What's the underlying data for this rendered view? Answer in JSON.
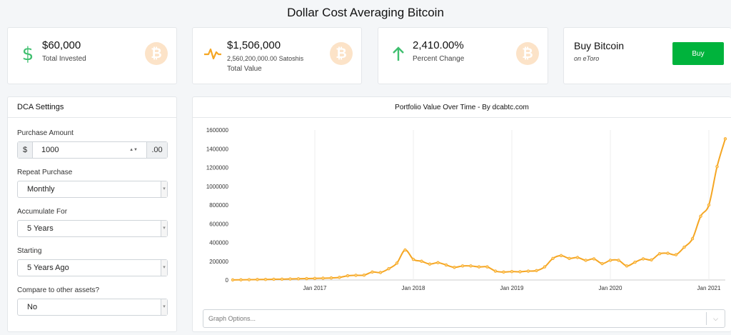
{
  "header": {
    "title": "Dollar Cost Averaging Bitcoin"
  },
  "stats": {
    "invested": {
      "value": "$60,000",
      "label": "Total Invested",
      "icon": "dollar-icon"
    },
    "total": {
      "value": "$1,506,000",
      "sats": "2,560,200,000.00 Satoshis",
      "label": "Total Value",
      "icon": "pulse-icon"
    },
    "change": {
      "value": "2,410.00%",
      "label": "Percent Change",
      "icon": "arrow-up-icon"
    },
    "buy": {
      "title": "Buy Bitcoin",
      "subtitle": "on eToro",
      "button": "Buy"
    },
    "coin_glyph": "₿"
  },
  "settings": {
    "title": "DCA Settings",
    "amount_label": "Purchase Amount",
    "currency_symbol": "$",
    "amount_value": "1000",
    "cents": ".00",
    "repeat_label": "Repeat Purchase",
    "repeat_value": "Monthly",
    "accumulate_label": "Accumulate For",
    "accumulate_value": "5 Years",
    "starting_label": "Starting",
    "starting_value": "5 Years Ago",
    "compare_label": "Compare to other assets?",
    "compare_value": "No"
  },
  "chart": {
    "title": "Portfolio Value Over Time - By dcabtc.com",
    "graph_options_placeholder": "Graph Options..."
  },
  "colors": {
    "accent": "#f5a623",
    "green": "#00b33c",
    "coin": "#fce3c8"
  },
  "chart_data": {
    "type": "line",
    "title": "Portfolio Value Over Time - By dcabtc.com",
    "xlabel": "",
    "ylabel": "",
    "ylim": [
      0,
      1600000
    ],
    "yticks": [
      0,
      200000,
      400000,
      600000,
      800000,
      1000000,
      1200000,
      1400000,
      1600000
    ],
    "xticks": [
      "Jan 2017",
      "Jan 2018",
      "Jan 2019",
      "Jan 2020",
      "Jan 2021"
    ],
    "grid": "vertical",
    "x": [
      "Mar 2016",
      "Apr 2016",
      "May 2016",
      "Jun 2016",
      "Jul 2016",
      "Aug 2016",
      "Sep 2016",
      "Oct 2016",
      "Nov 2016",
      "Dec 2016",
      "Jan 2017",
      "Feb 2017",
      "Mar 2017",
      "Apr 2017",
      "May 2017",
      "Jun 2017",
      "Jul 2017",
      "Aug 2017",
      "Sep 2017",
      "Oct 2017",
      "Nov 2017",
      "Dec 2017",
      "Jan 2018",
      "Feb 2018",
      "Mar 2018",
      "Apr 2018",
      "May 2018",
      "Jun 2018",
      "Jul 2018",
      "Aug 2018",
      "Sep 2018",
      "Oct 2018",
      "Nov 2018",
      "Dec 2018",
      "Jan 2019",
      "Feb 2019",
      "Mar 2019",
      "Apr 2019",
      "May 2019",
      "Jun 2019",
      "Jul 2019",
      "Aug 2019",
      "Sep 2019",
      "Oct 2019",
      "Nov 2019",
      "Dec 2019",
      "Jan 2020",
      "Feb 2020",
      "Mar 2020",
      "Apr 2020",
      "May 2020",
      "Jun 2020",
      "Jul 2020",
      "Aug 2020",
      "Sep 2020",
      "Oct 2020",
      "Nov 2020",
      "Dec 2020",
      "Jan 2021",
      "Feb 2021",
      "Mar 2021"
    ],
    "series": [
      {
        "values": [
          1000,
          2000,
          3500,
          5000,
          6000,
          8000,
          9000,
          11000,
          13000,
          15000,
          17000,
          19000,
          22000,
          28000,
          45000,
          50000,
          52000,
          85000,
          80000,
          120000,
          180000,
          320000,
          220000,
          200000,
          170000,
          185000,
          160000,
          135000,
          150000,
          150000,
          140000,
          140000,
          95000,
          85000,
          90000,
          88000,
          95000,
          100000,
          140000,
          230000,
          260000,
          230000,
          240000,
          210000,
          225000,
          175000,
          210000,
          210000,
          150000,
          190000,
          225000,
          215000,
          280000,
          285000,
          270000,
          350000,
          440000,
          680000,
          800000,
          1210000,
          1506000
        ]
      }
    ]
  }
}
